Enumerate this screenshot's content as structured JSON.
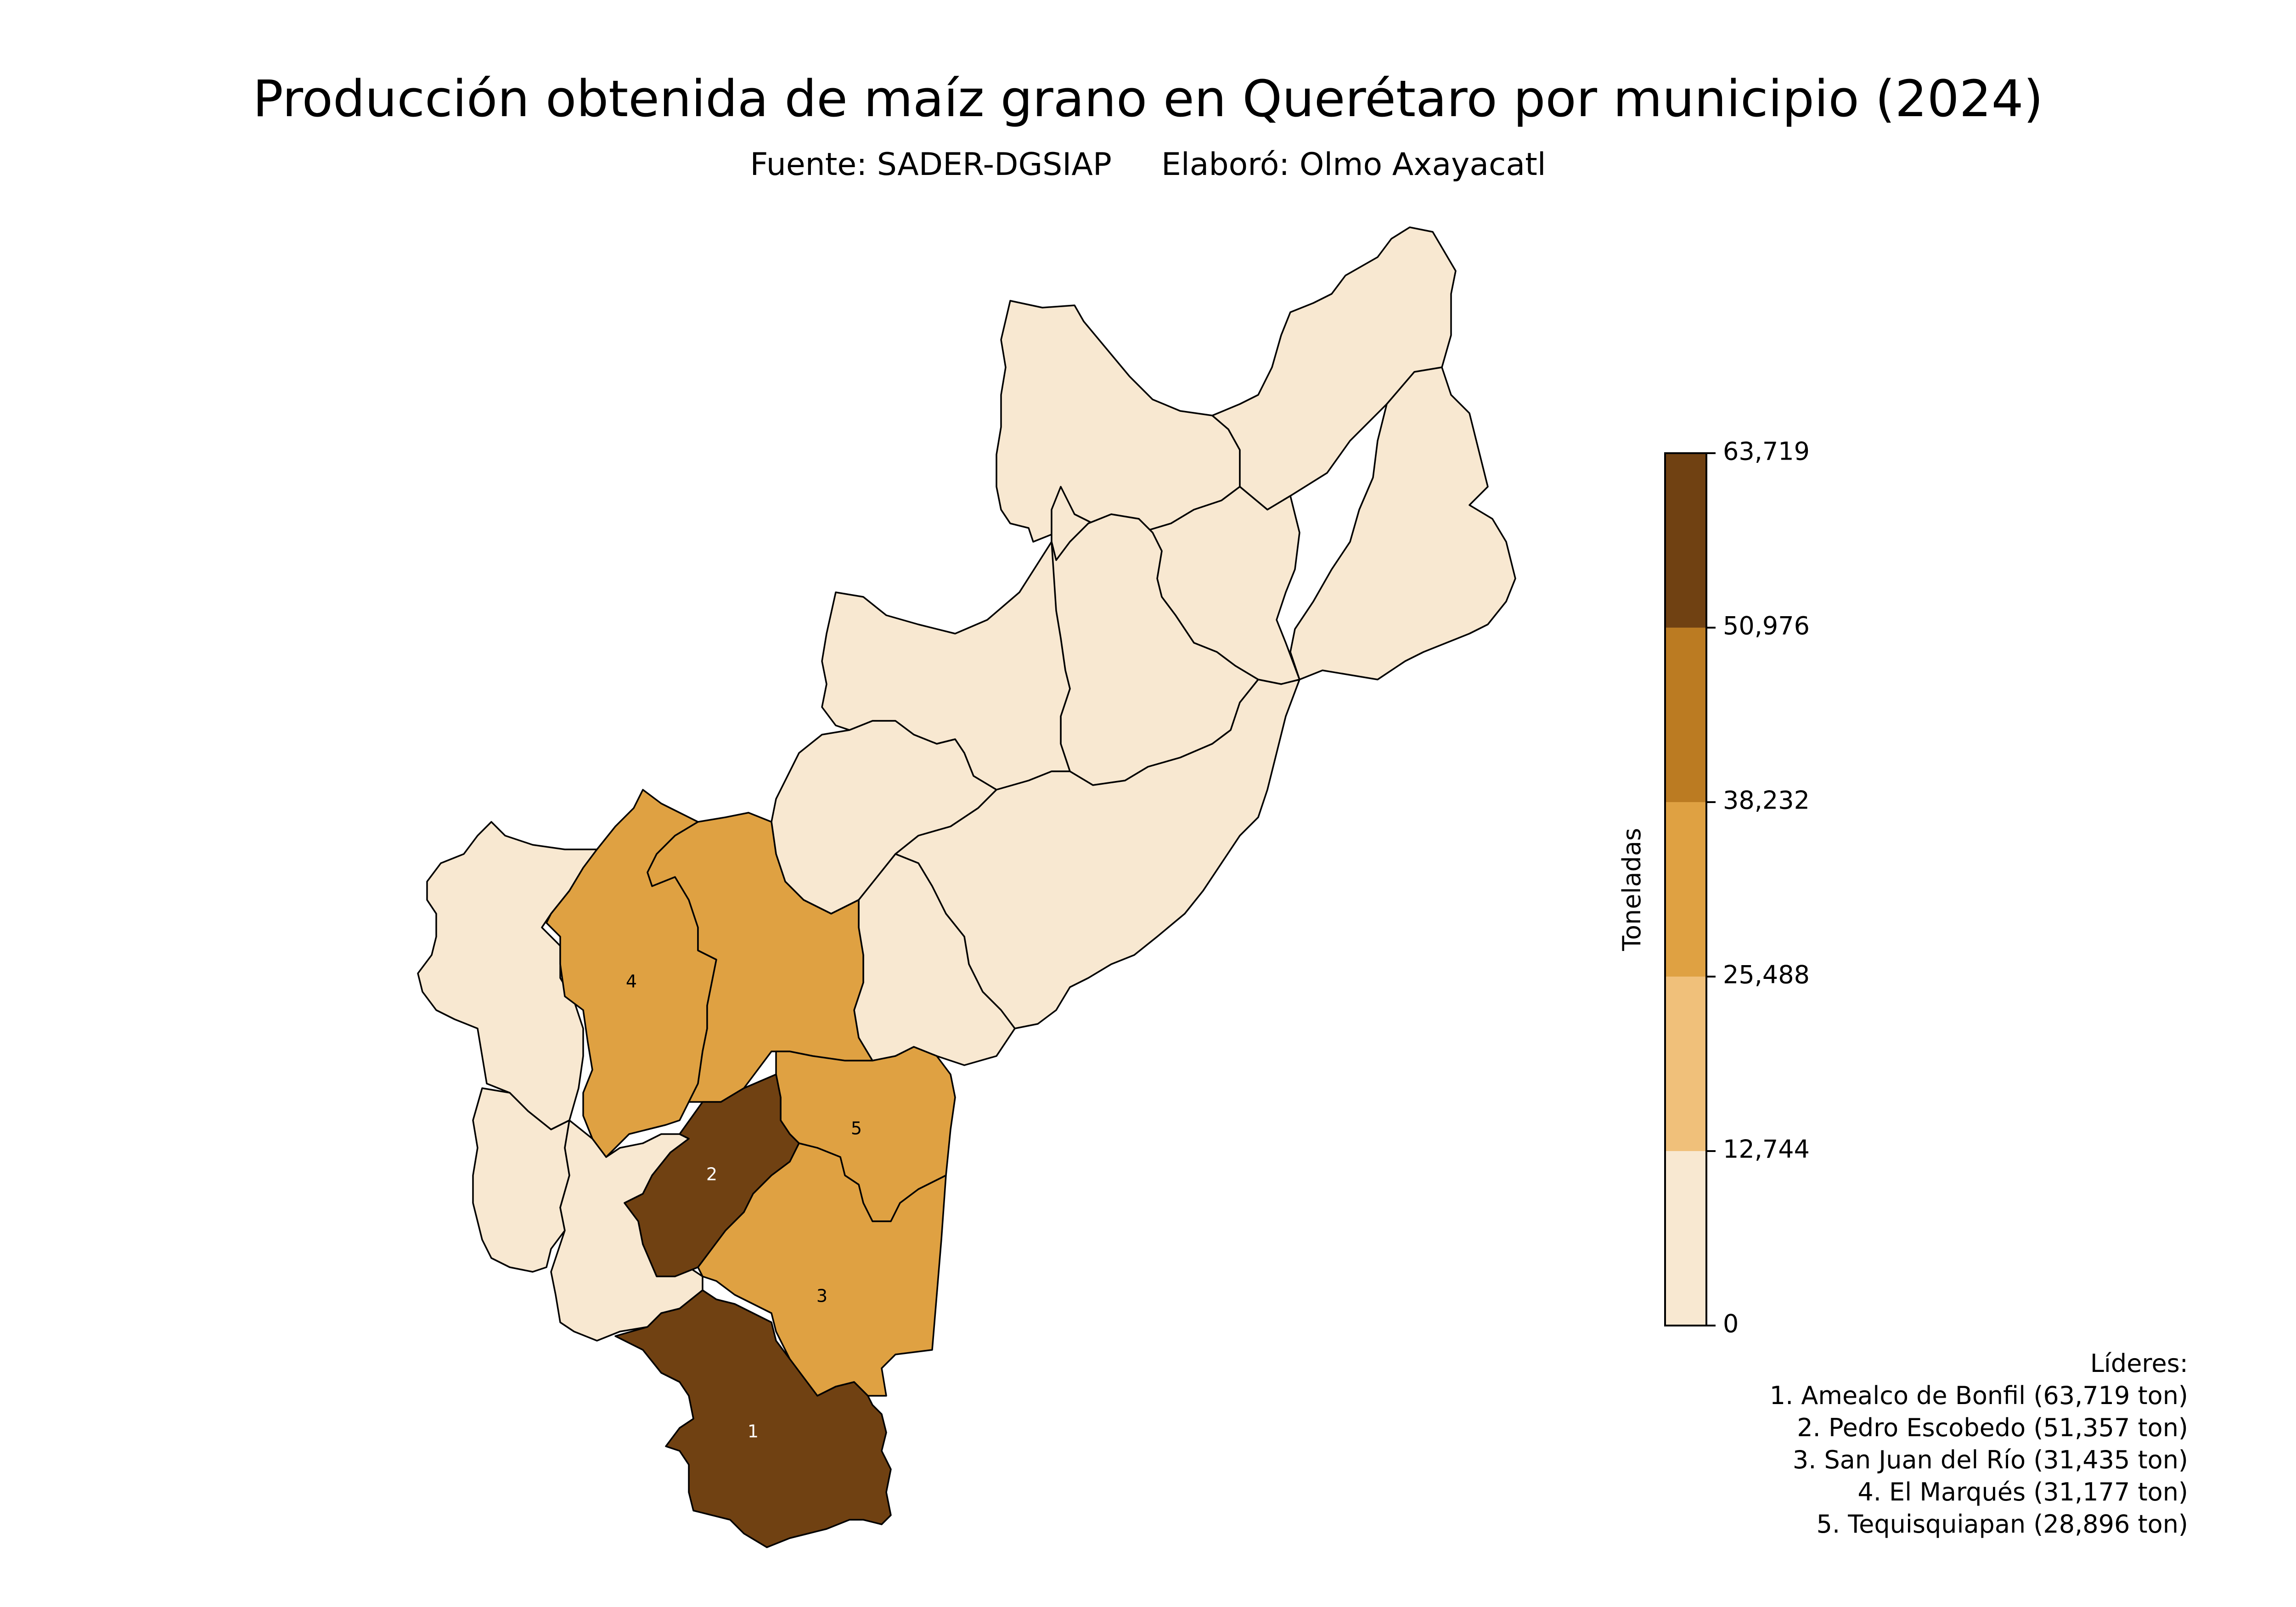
{
  "title": "Producción obtenida de maíz grano en Querétaro por municipio (2024)",
  "subtitle": "Fuente: SADER-DGSIAP     Elaboró: Olmo Axayacatl",
  "colorbar": {
    "label": "Toneladas",
    "ticks": [
      "0",
      "12,744",
      "25,488",
      "38,232",
      "50,976",
      "63,719"
    ],
    "tick_values": [
      0,
      12744,
      25488,
      38232,
      50976,
      63719
    ],
    "colors": [
      "#f8e8d1",
      "#f0c07a",
      "#dfa142",
      "#bb7b22",
      "#704112"
    ]
  },
  "leaders": {
    "title": "Líderes:",
    "items": [
      "1. Amealco de Bonfil (63,719 ton)",
      "2. Pedro Escobedo (51,357 ton)",
      "3. San Juan del Río (31,435 ton)",
      "4. El Marqués (31,177 ton)",
      "5. Tequisquiapan (28,896 ton)"
    ]
  },
  "regions": [
    {
      "rank": "1",
      "name": "Amealco de Bonfil",
      "value": 63719,
      "color": "#704112",
      "label_color": "#ffffff"
    },
    {
      "rank": "2",
      "name": "Pedro Escobedo",
      "value": 51357,
      "color": "#704112",
      "label_color": "#ffffff"
    },
    {
      "rank": "3",
      "name": "San Juan del Río",
      "value": 31435,
      "color": "#dfa142",
      "label_color": "#000000"
    },
    {
      "rank": "4",
      "name": "El Marqués",
      "value": 31177,
      "color": "#dfa142",
      "label_color": "#000000"
    },
    {
      "rank": "5",
      "name": "Tequisquiapan",
      "value": 28896,
      "color": "#dfa142",
      "label_color": "#000000"
    }
  ],
  "other_municipalities_color": "#f8e8d1"
}
